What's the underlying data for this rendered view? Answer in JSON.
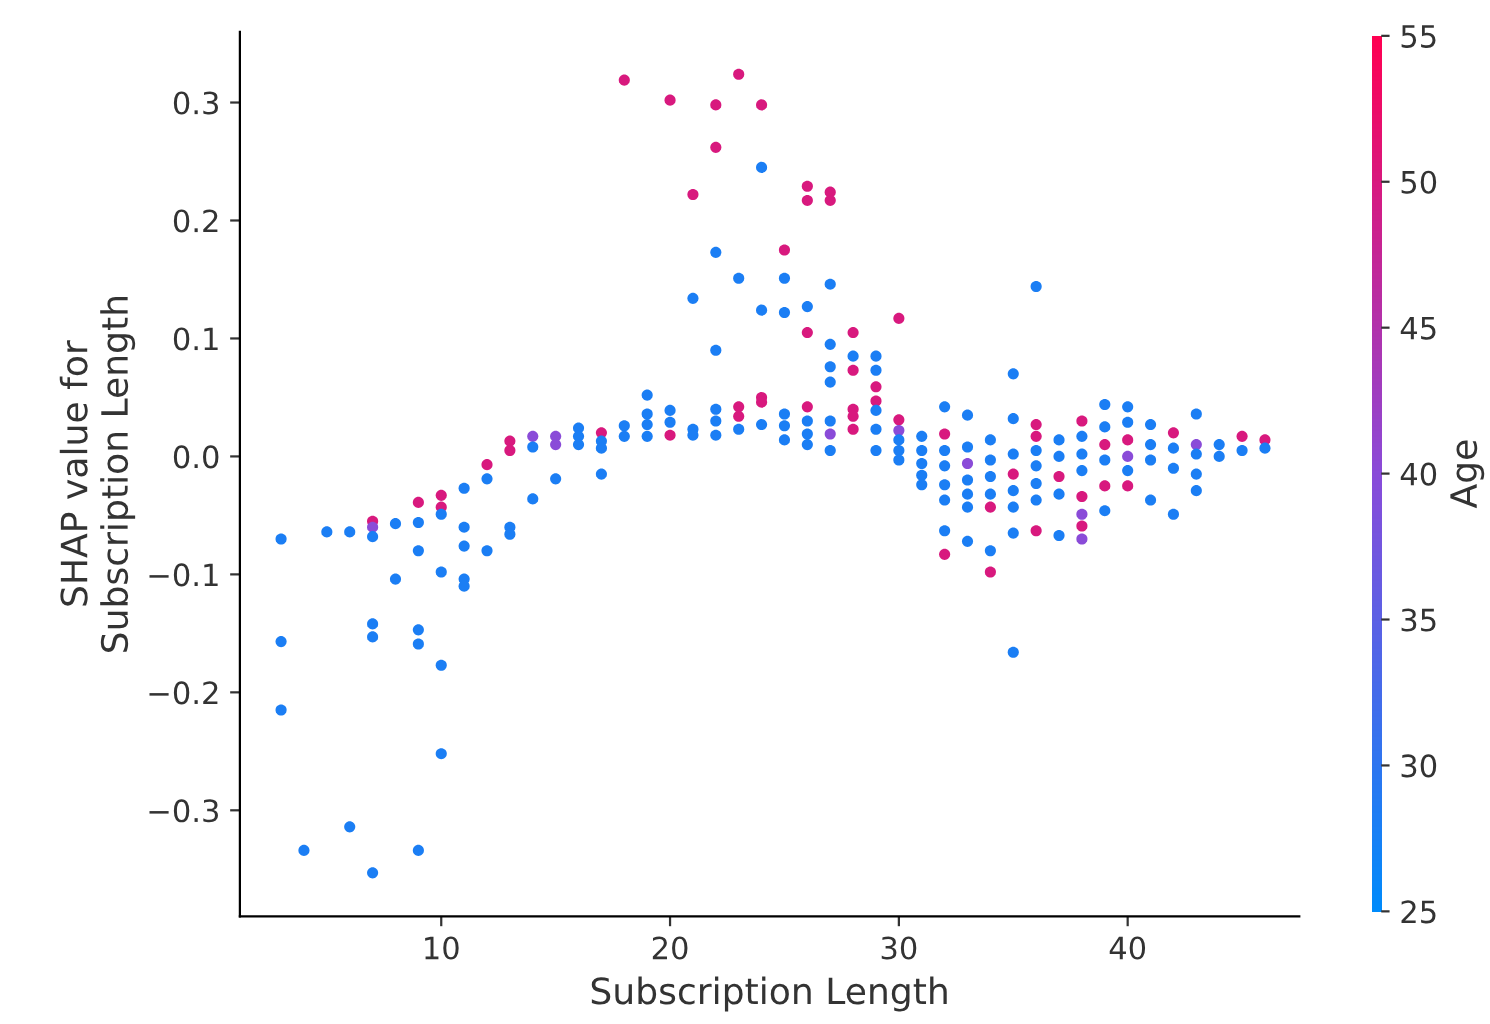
{
  "chart_data": {
    "type": "scatter",
    "xlabel": "Subscription Length",
    "ylabel": "SHAP value for\nSubscription Length",
    "clabel": "Age",
    "xlim": [
      1.2,
      47.5
    ],
    "ylim": [
      -0.39,
      0.36
    ],
    "xticks": [
      10,
      20,
      30,
      40
    ],
    "yticks": [
      {
        "value": -0.3,
        "label": "−0.3"
      },
      {
        "value": -0.2,
        "label": "−0.2"
      },
      {
        "value": -0.1,
        "label": "−0.1"
      },
      {
        "value": 0.0,
        "label": "0.0"
      },
      {
        "value": 0.1,
        "label": "0.1"
      },
      {
        "value": 0.2,
        "label": "0.2"
      },
      {
        "value": 0.3,
        "label": "0.3"
      }
    ],
    "clim": [
      25,
      55
    ],
    "cticks": [
      25,
      30,
      35,
      40,
      45,
      50,
      55
    ],
    "grid": false,
    "legend": false,
    "x": [
      3,
      3,
      3,
      4,
      5,
      6,
      6,
      7,
      7,
      7,
      7,
      7,
      7,
      8,
      8,
      9,
      9,
      9,
      9,
      9,
      9,
      10,
      10,
      10,
      10,
      10,
      10,
      11,
      11,
      11,
      11,
      11,
      12,
      12,
      12,
      13,
      13,
      13,
      13,
      14,
      14,
      14,
      15,
      15,
      15,
      16,
      16,
      16,
      17,
      17,
      17,
      17,
      18,
      18,
      18,
      19,
      19,
      19,
      19,
      20,
      20,
      20,
      20,
      21,
      21,
      21,
      21,
      22,
      22,
      22,
      22,
      22,
      22,
      22,
      23,
      23,
      23,
      23,
      23,
      24,
      24,
      24,
      24,
      24,
      24,
      25,
      25,
      25,
      25,
      25,
      25,
      26,
      26,
      26,
      26,
      26,
      26,
      26,
      26,
      27,
      27,
      27,
      27,
      27,
      27,
      27,
      27,
      27,
      28,
      28,
      28,
      28,
      28,
      28,
      29,
      29,
      29,
      29,
      29,
      29,
      29,
      30,
      30,
      30,
      30,
      30,
      30,
      31,
      31,
      31,
      31,
      31,
      32,
      32,
      32,
      32,
      32,
      32,
      32,
      32,
      33,
      33,
      33,
      33,
      33,
      33,
      33,
      34,
      34,
      34,
      34,
      34,
      34,
      34,
      35,
      35,
      35,
      35,
      35,
      35,
      35,
      35,
      36,
      36,
      36,
      36,
      36,
      36,
      36,
      36,
      37,
      37,
      37,
      37,
      37,
      38,
      38,
      38,
      38,
      38,
      38,
      38,
      38,
      39,
      39,
      39,
      39,
      39,
      39,
      40,
      40,
      40,
      40,
      40,
      40,
      41,
      41,
      41,
      41,
      42,
      42,
      42,
      42,
      43,
      43,
      43,
      43,
      43,
      44,
      44,
      45,
      45,
      46,
      46
    ],
    "values": [
      -0.07,
      -0.157,
      -0.215,
      -0.334,
      -0.064,
      -0.064,
      -0.314,
      -0.055,
      -0.06,
      -0.068,
      -0.142,
      -0.153,
      -0.353,
      -0.057,
      -0.104,
      -0.039,
      -0.056,
      -0.08,
      -0.147,
      -0.159,
      -0.334,
      -0.033,
      -0.043,
      -0.049,
      -0.098,
      -0.177,
      -0.252,
      -0.027,
      -0.06,
      -0.076,
      -0.104,
      -0.11,
      -0.007,
      -0.019,
      -0.08,
      0.013,
      0.005,
      -0.06,
      -0.066,
      0.017,
      0.008,
      -0.036,
      0.017,
      0.01,
      -0.019,
      0.024,
      0.017,
      0.01,
      0.02,
      0.013,
      0.007,
      -0.015,
      0.319,
      0.026,
      0.017,
      0.052,
      0.036,
      0.027,
      0.017,
      0.302,
      0.039,
      0.029,
      0.018,
      0.222,
      0.134,
      0.023,
      0.018,
      0.298,
      0.262,
      0.173,
      0.09,
      0.04,
      0.03,
      0.018,
      0.324,
      0.151,
      0.042,
      0.034,
      0.023,
      0.298,
      0.245,
      0.124,
      0.05,
      0.046,
      0.027,
      0.175,
      0.151,
      0.122,
      0.036,
      0.026,
      0.014,
      0.229,
      0.217,
      0.127,
      0.105,
      0.042,
      0.03,
      0.019,
      0.01,
      0.224,
      0.217,
      0.146,
      0.095,
      0.076,
      0.063,
      0.03,
      0.019,
      0.005,
      0.105,
      0.085,
      0.073,
      0.04,
      0.034,
      0.023,
      0.085,
      0.073,
      0.059,
      0.047,
      0.039,
      0.023,
      0.005,
      0.117,
      0.031,
      0.022,
      0.014,
      0.005,
      -0.003,
      0.017,
      0.005,
      -0.006,
      -0.016,
      -0.024,
      0.042,
      0.019,
      0.005,
      -0.008,
      -0.024,
      -0.037,
      -0.063,
      -0.083,
      0.035,
      0.008,
      -0.006,
      -0.02,
      -0.032,
      -0.043,
      -0.072,
      0.014,
      -0.003,
      -0.017,
      -0.032,
      -0.043,
      -0.08,
      -0.098,
      0.07,
      0.032,
      0.002,
      -0.015,
      -0.029,
      -0.043,
      -0.065,
      -0.166,
      0.144,
      0.027,
      0.017,
      0.005,
      -0.008,
      -0.023,
      -0.037,
      -0.063,
      0.014,
      0,
      -0.017,
      -0.032,
      -0.067,
      0.03,
      0.017,
      0.002,
      -0.012,
      -0.034,
      -0.049,
      -0.059,
      -0.07,
      0.044,
      0.025,
      0.01,
      -0.003,
      -0.025,
      -0.046,
      0.042,
      0.029,
      0.014,
      0,
      -0.012,
      -0.025,
      0.027,
      0.01,
      -0.003,
      -0.037,
      0.02,
      0.007,
      -0.01,
      -0.049,
      0.036,
      0.01,
      0.002,
      -0.015,
      -0.029,
      0.01,
      0,
      0.017,
      0.005,
      0.014,
      0.007
    ],
    "cvalues": [
      28,
      28,
      28,
      28,
      28,
      28,
      28,
      50,
      40,
      28,
      28,
      28,
      28,
      28,
      28,
      50,
      28,
      28,
      28,
      28,
      28,
      50,
      50,
      28,
      28,
      28,
      28,
      28,
      28,
      28,
      28,
      28,
      50,
      28,
      28,
      50,
      50,
      28,
      28,
      40,
      28,
      28,
      40,
      40,
      28,
      28,
      28,
      28,
      50,
      28,
      28,
      28,
      50,
      28,
      28,
      28,
      28,
      28,
      28,
      50,
      28,
      28,
      50,
      50,
      28,
      28,
      28,
      50,
      50,
      28,
      28,
      28,
      28,
      28,
      50,
      28,
      50,
      50,
      28,
      50,
      28,
      28,
      50,
      50,
      28,
      50,
      28,
      28,
      28,
      28,
      28,
      50,
      50,
      28,
      50,
      50,
      28,
      28,
      28,
      50,
      50,
      28,
      28,
      28,
      28,
      28,
      40,
      28,
      50,
      28,
      50,
      50,
      50,
      50,
      28,
      28,
      50,
      50,
      28,
      28,
      28,
      50,
      50,
      40,
      28,
      28,
      28,
      28,
      28,
      28,
      28,
      28,
      28,
      50,
      28,
      28,
      28,
      28,
      28,
      50,
      28,
      28,
      40,
      28,
      28,
      28,
      28,
      28,
      28,
      28,
      28,
      50,
      28,
      50,
      28,
      28,
      28,
      50,
      28,
      28,
      28,
      28,
      28,
      50,
      50,
      28,
      28,
      28,
      28,
      50,
      28,
      28,
      50,
      28,
      28,
      50,
      28,
      28,
      28,
      50,
      40,
      50,
      40,
      28,
      28,
      50,
      28,
      50,
      28,
      28,
      28,
      50,
      40,
      28,
      50,
      28,
      28,
      28,
      28,
      50,
      28,
      28,
      28,
      28,
      40,
      28,
      28,
      28,
      28,
      28,
      50,
      28,
      50,
      28
    ]
  }
}
